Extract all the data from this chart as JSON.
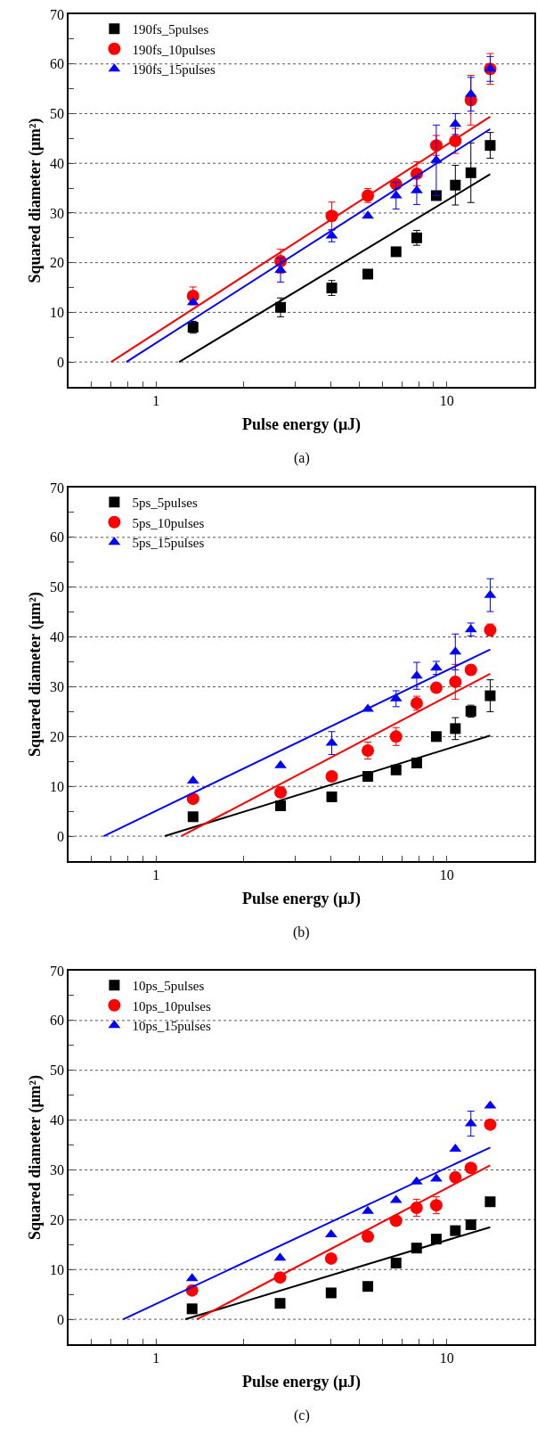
{
  "chart_data": [
    {
      "type": "scatter",
      "xlabel": "Pulse energy (μJ)",
      "ylabel": "Squared diameter (μm²)",
      "annotations": [
        "(a)"
      ],
      "log": "x",
      "grid": "y",
      "legend": "top left",
      "xlim": [
        0.5,
        20
      ],
      "ylim": [
        -5,
        70
      ],
      "xticks": [
        {
          "value": 0.6,
          "label": null
        },
        {
          "value": 0.7,
          "label": null
        },
        {
          "value": 0.8,
          "label": null
        },
        {
          "value": 0.9,
          "label": null
        },
        {
          "value": 1,
          "label": "1"
        },
        {
          "value": 2,
          "label": null
        },
        {
          "value": 3,
          "label": null
        },
        {
          "value": 4,
          "label": null
        },
        {
          "value": 5,
          "label": null
        },
        {
          "value": 6,
          "label": null
        },
        {
          "value": 7,
          "label": null
        },
        {
          "value": 8,
          "label": null
        },
        {
          "value": 9,
          "label": null
        },
        {
          "value": 10,
          "label": "10"
        }
      ],
      "yticks": [
        0,
        {
          "value": 5,
          "label": null
        },
        10,
        {
          "value": 15,
          "label": null
        },
        20,
        {
          "value": 25,
          "label": null
        },
        30,
        {
          "value": 35,
          "label": null
        },
        40,
        {
          "value": 45,
          "label": null
        },
        50,
        {
          "value": 55,
          "label": null
        },
        60,
        {
          "value": 65,
          "label": null
        },
        70
      ],
      "x": [
        1.34,
        2.68,
        4.02,
        5.35,
        6.69,
        7.88,
        9.2,
        10.7,
        12.1,
        14.1
      ],
      "series": [
        {
          "name": "190fs_5pulses",
          "color": "#000000",
          "marker": "square",
          "values": [
            7.0,
            11.0,
            14.9,
            17.7,
            22.2,
            25.0,
            33.5,
            35.6,
            38.1,
            43.6
          ],
          "errors": [
            1.2,
            1.9,
            1.5,
            null,
            null,
            1.5,
            null,
            4,
            6,
            2.6
          ]
        },
        {
          "name": "190fs_10pulses",
          "color": "#ff0000",
          "marker": "circle",
          "values": [
            13.3,
            20.3,
            29.4,
            33.5,
            35.8,
            37.9,
            43.6,
            44.5,
            52.7,
            59.0
          ],
          "errors": [
            1.8,
            2.4,
            2.8,
            1.4,
            null,
            2.4,
            2,
            2.5,
            5,
            3.1
          ]
        },
        {
          "name": "190fs_15pulses",
          "color": "#0000ff",
          "marker": "triangle",
          "values": [
            12.0,
            18.5,
            25.4,
            29.4,
            33.5,
            34.5,
            40.6,
            47.9,
            53.9,
            59.0
          ],
          "errors": [
            null,
            2.4,
            1.2,
            null,
            2.7,
            2.8,
            7.1,
            2.1,
            3.4,
            2.5
          ]
        },
        {
          "type": "line",
          "color": "#000000",
          "x": [
            1.2,
            14.1
          ],
          "values": [
            0,
            37.8
          ]
        },
        {
          "type": "line",
          "color": "#ff0000",
          "x": [
            0.7,
            14.1
          ],
          "values": [
            0,
            49.4
          ]
        },
        {
          "type": "line",
          "color": "#0000ff",
          "x": [
            0.79,
            14.1
          ],
          "values": [
            0,
            46.9
          ]
        }
      ]
    },
    {
      "type": "scatter",
      "xlabel": "Pulse energy (μJ)",
      "ylabel": "Squared diameter (μm²)",
      "annotations": [
        "(b)"
      ],
      "log": "x",
      "grid": "y",
      "legend": "top left",
      "xlim": [
        0.5,
        20
      ],
      "ylim": [
        -5,
        70
      ],
      "xticks": [
        {
          "value": 0.6,
          "label": null
        },
        {
          "value": 0.7,
          "label": null
        },
        {
          "value": 0.8,
          "label": null
        },
        {
          "value": 0.9,
          "label": null
        },
        {
          "value": 1,
          "label": "1"
        },
        {
          "value": 2,
          "label": null
        },
        {
          "value": 3,
          "label": null
        },
        {
          "value": 4,
          "label": null
        },
        {
          "value": 5,
          "label": null
        },
        {
          "value": 6,
          "label": null
        },
        {
          "value": 7,
          "label": null
        },
        {
          "value": 8,
          "label": null
        },
        {
          "value": 9,
          "label": null
        },
        {
          "value": 10,
          "label": "10"
        }
      ],
      "yticks": [
        0,
        {
          "value": 5,
          "label": null
        },
        10,
        {
          "value": 15,
          "label": null
        },
        20,
        {
          "value": 25,
          "label": null
        },
        30,
        {
          "value": 35,
          "label": null
        },
        40,
        {
          "value": 45,
          "label": null
        },
        50,
        {
          "value": 55,
          "label": null
        },
        60,
        {
          "value": 65,
          "label": null
        },
        70
      ],
      "x": [
        1.34,
        2.68,
        4.02,
        5.35,
        6.69,
        7.88,
        9.2,
        10.7,
        12.1,
        14.1
      ],
      "series": [
        {
          "name": "5ps_5pulses",
          "color": "#000000",
          "marker": "square",
          "values": [
            3.9,
            6.1,
            7.9,
            12.0,
            13.3,
            14.7,
            20.0,
            21.6,
            25.1,
            28.2
          ],
          "errors": [
            null,
            null,
            null,
            null,
            null,
            null,
            null,
            2.2,
            1.2,
            3.2
          ]
        },
        {
          "name": "5ps_10pulses",
          "color": "#ff0000",
          "marker": "circle",
          "values": [
            7.5,
            8.8,
            12.0,
            17.2,
            20.0,
            26.7,
            29.8,
            31.0,
            33.4,
            41.4
          ],
          "errors": [
            null,
            1,
            null,
            1.7,
            1.8,
            1.4,
            null,
            3.5,
            null,
            1.2
          ]
        },
        {
          "name": "5ps_15pulses",
          "color": "#0000ff",
          "marker": "triangle",
          "values": [
            11.1,
            14.2,
            18.7,
            25.5,
            27.6,
            32.2,
            33.8,
            37.0,
            41.5,
            48.4
          ],
          "errors": [
            null,
            null,
            2.3,
            null,
            1.6,
            2.7,
            1.3,
            3.6,
            1.3,
            3.3
          ]
        },
        {
          "type": "line",
          "color": "#000000",
          "x": [
            1.07,
            14.1
          ],
          "values": [
            0,
            20.2
          ]
        },
        {
          "type": "line",
          "color": "#ff0000",
          "x": [
            1.22,
            14.1
          ],
          "values": [
            0,
            32.6
          ]
        },
        {
          "type": "line",
          "color": "#0000ff",
          "x": [
            0.66,
            14.1
          ],
          "values": [
            0,
            37.5
          ]
        }
      ]
    },
    {
      "type": "scatter",
      "xlabel": "Pulse energy (μJ)",
      "ylabel": "Squared diameter (μm²)",
      "annotations": [
        "(c)"
      ],
      "log": "x",
      "grid": "y",
      "legend": "top left",
      "xlim": [
        0.5,
        20
      ],
      "ylim": [
        -5,
        70
      ],
      "xticks": [
        {
          "value": 0.6,
          "label": null
        },
        {
          "value": 0.7,
          "label": null
        },
        {
          "value": 0.8,
          "label": null
        },
        {
          "value": 0.9,
          "label": null
        },
        {
          "value": 1,
          "label": "1"
        },
        {
          "value": 2,
          "label": null
        },
        {
          "value": 3,
          "label": null
        },
        {
          "value": 4,
          "label": null
        },
        {
          "value": 5,
          "label": null
        },
        {
          "value": 6,
          "label": null
        },
        {
          "value": 7,
          "label": null
        },
        {
          "value": 8,
          "label": null
        },
        {
          "value": 9,
          "label": null
        },
        {
          "value": 10,
          "label": "10"
        }
      ],
      "yticks": [
        0,
        {
          "value": 5,
          "label": null
        },
        10,
        {
          "value": 15,
          "label": null
        },
        20,
        {
          "value": 25,
          "label": null
        },
        30,
        {
          "value": 35,
          "label": null
        },
        40,
        {
          "value": 45,
          "label": null
        },
        50,
        {
          "value": 55,
          "label": null
        },
        60,
        {
          "value": 65,
          "label": null
        },
        70
      ],
      "x": [
        1.33,
        2.67,
        4.0,
        5.35,
        6.69,
        7.87,
        9.2,
        10.7,
        12.1,
        14.1
      ],
      "series": [
        {
          "name": "10ps_5pulses",
          "color": "#000000",
          "marker": "square",
          "values": [
            2.1,
            3.2,
            5.3,
            6.6,
            11.3,
            14.3,
            16.1,
            17.8,
            19.0,
            23.6
          ],
          "errors": [
            null,
            null,
            null,
            null,
            null,
            0.9,
            null,
            null,
            null,
            null
          ]
        },
        {
          "name": "10ps_10pulses",
          "color": "#ff0000",
          "marker": "circle",
          "values": [
            5.8,
            8.4,
            12.2,
            16.6,
            19.8,
            22.4,
            22.9,
            28.5,
            30.4,
            39.1
          ],
          "errors": [
            null,
            null,
            null,
            null,
            null,
            1.7,
            1.7,
            null,
            null,
            null
          ]
        },
        {
          "name": "10ps_15pulses",
          "color": "#0000ff",
          "marker": "triangle",
          "values": [
            8.2,
            12.3,
            17.0,
            21.7,
            23.9,
            27.6,
            28.2,
            34.2,
            39.3,
            42.9
          ],
          "errors": [
            null,
            null,
            null,
            null,
            null,
            null,
            null,
            null,
            2.5,
            null
          ]
        },
        {
          "type": "line",
          "color": "#000000",
          "x": [
            1.26,
            14.1
          ],
          "values": [
            0,
            18.5
          ]
        },
        {
          "type": "line",
          "color": "#ff0000",
          "x": [
            1.38,
            14.1
          ],
          "values": [
            0,
            30.9
          ]
        },
        {
          "type": "line",
          "color": "#0000ff",
          "x": [
            0.77,
            14.1
          ],
          "values": [
            0,
            34.5
          ]
        }
      ]
    }
  ]
}
